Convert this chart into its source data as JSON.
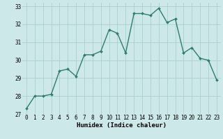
{
  "x": [
    0,
    1,
    2,
    3,
    4,
    5,
    6,
    7,
    8,
    9,
    10,
    11,
    12,
    13,
    14,
    15,
    16,
    17,
    18,
    19,
    20,
    21,
    22,
    23
  ],
  "y": [
    27.3,
    28.0,
    28.0,
    28.1,
    29.4,
    29.5,
    29.1,
    30.3,
    30.3,
    30.5,
    31.7,
    31.5,
    30.4,
    32.6,
    32.6,
    32.5,
    32.9,
    32.1,
    32.3,
    30.4,
    30.7,
    30.1,
    30.0,
    28.9
  ],
  "line_color": "#2e7d6e",
  "bg_color": "#cce8e8",
  "grid_color": "#aacece",
  "xlabel": "Humidex (Indice chaleur)",
  "ylim": [
    27,
    33.2
  ],
  "xlim": [
    -0.5,
    23.5
  ],
  "yticks": [
    27,
    28,
    29,
    30,
    31,
    32,
    33
  ],
  "xticks": [
    0,
    1,
    2,
    3,
    4,
    5,
    6,
    7,
    8,
    9,
    10,
    11,
    12,
    13,
    14,
    15,
    16,
    17,
    18,
    19,
    20,
    21,
    22,
    23
  ],
  "marker_size": 2.0,
  "line_width": 1.0,
  "tick_fontsize": 5.5,
  "xlabel_fontsize": 6.5
}
